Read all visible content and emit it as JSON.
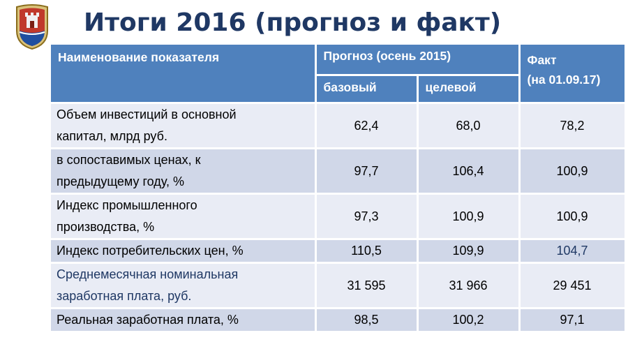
{
  "title": "Итоги 2016 (прогноз и факт)",
  "emblem": "kaliningrad-coat-of-arms",
  "colors": {
    "header": "#4f81bd",
    "row_light": "#e9ecf5",
    "row_dark": "#d0d7e8",
    "title": "#1f3864"
  },
  "table": {
    "headers": {
      "name": "Наименование показателя",
      "forecast": "Прогноз (осень  2015)",
      "base": "базовый",
      "target": "целевой",
      "fact_line1": "Факт",
      "fact_line2": "(на 01.09.17)"
    },
    "rows": [
      {
        "label": [
          "Объем инвестиций в основной",
          "капитал,  млрд руб."
        ],
        "base": "62,4",
        "target": "68,0",
        "fact": "78,2"
      },
      {
        "label": [
          "в сопоставимых ценах,  к",
          "предыдущему году, %"
        ],
        "base": "97,7",
        "target": "106,4",
        "fact": "100,9"
      },
      {
        "label": [
          "Индекс промышленного",
          "производства, %"
        ],
        "base": "97,3",
        "target": "100,9",
        "fact": "100,9"
      },
      {
        "label": [
          "Индекс потребительских цен, %"
        ],
        "base": "110,5",
        "target": "109,9",
        "fact": "104,7"
      },
      {
        "label": [
          "Среднемесячная номинальная",
          "заработная плата, руб."
        ],
        "base": "31 595",
        "target": "31 966",
        "fact": "29 451"
      },
      {
        "label": [
          "Реальная заработная плата, %"
        ],
        "base": "98,5",
        "target": "100,2",
        "fact": "97,1"
      }
    ]
  }
}
